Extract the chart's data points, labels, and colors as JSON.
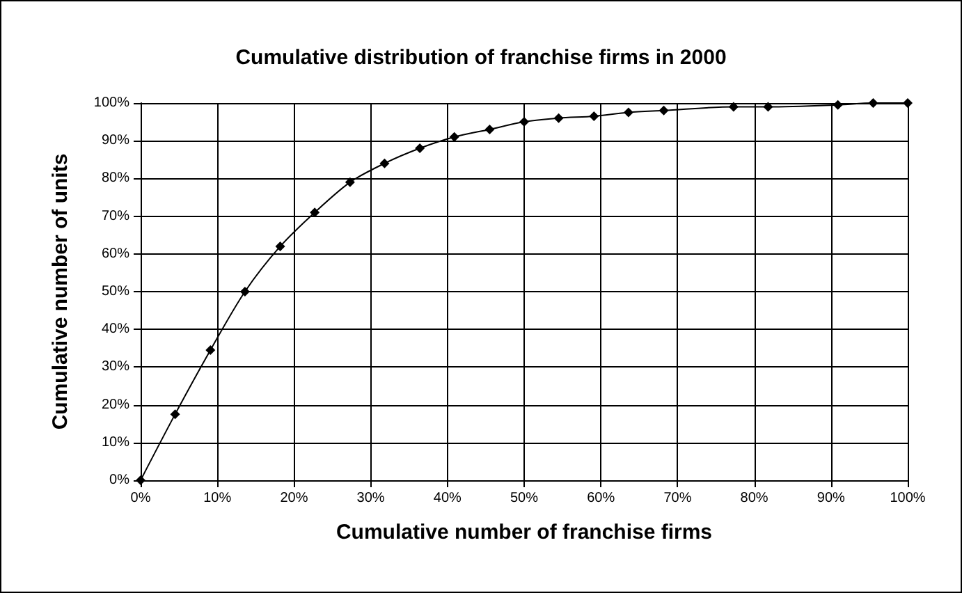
{
  "chart_data": {
    "type": "line",
    "title": "Cumulative distribution of franchise firms in 2000",
    "xlabel": "Cumulative number of franchise firms",
    "ylabel": "Cumulative number of units",
    "x": [
      0,
      4.5,
      9.1,
      13.6,
      18.2,
      22.7,
      27.3,
      31.8,
      36.4,
      40.9,
      45.5,
      50,
      54.5,
      59.1,
      63.6,
      68.2,
      77.3,
      81.8,
      90.9,
      95.5,
      100
    ],
    "series": [
      {
        "color": "#000000",
        "values": [
          0,
          17.5,
          34.5,
          50,
          62,
          71,
          79,
          84,
          88,
          91,
          93,
          95,
          96,
          96.5,
          97.5,
          98,
          99,
          99,
          99.5,
          100,
          100
        ]
      }
    ],
    "xlim": [
      0,
      100
    ],
    "xticks": [
      {
        "value": 0,
        "label": "0%"
      },
      {
        "value": 10,
        "label": "10%"
      },
      {
        "value": 20,
        "label": "20%"
      },
      {
        "value": 30,
        "label": "30%"
      },
      {
        "value": 40,
        "label": "40%"
      },
      {
        "value": 50,
        "label": "50%"
      },
      {
        "value": 60,
        "label": "60%"
      },
      {
        "value": 70,
        "label": "70%"
      },
      {
        "value": 80,
        "label": "80%"
      },
      {
        "value": 90,
        "label": "90%"
      },
      {
        "value": 100,
        "label": "100%"
      }
    ],
    "ylim": [
      0,
      100
    ],
    "yticks": [
      {
        "value": 0,
        "label": "0%"
      },
      {
        "value": 10,
        "label": "10%"
      },
      {
        "value": 20,
        "label": "20%"
      },
      {
        "value": 30,
        "label": "30%"
      },
      {
        "value": 40,
        "label": "40%"
      },
      {
        "value": 50,
        "label": "50%"
      },
      {
        "value": 60,
        "label": "60%"
      },
      {
        "value": 70,
        "label": "70%"
      },
      {
        "value": 80,
        "label": "80%"
      },
      {
        "value": 90,
        "label": "90%"
      },
      {
        "value": 100,
        "label": "100%"
      }
    ],
    "grid": true,
    "marker": "diamond",
    "line_style": "solid"
  }
}
